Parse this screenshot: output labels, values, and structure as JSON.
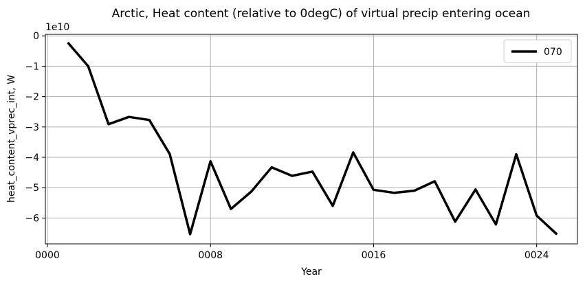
{
  "chart_data": {
    "type": "line",
    "title": "Arctic, Heat content (relative to 0degC) of virtual precip entering ocean",
    "xlabel": "Year",
    "ylabel": "heat_content_vprec_int, W",
    "offset_label": "1e10",
    "x_ticks": [
      {
        "value": 0,
        "label": "0000"
      },
      {
        "value": 8,
        "label": "0008"
      },
      {
        "value": 16,
        "label": "0016"
      },
      {
        "value": 24,
        "label": "0024"
      }
    ],
    "y_ticks": [
      {
        "value": 0,
        "label": "0"
      },
      {
        "value": -1,
        "label": "−1"
      },
      {
        "value": -2,
        "label": "−2"
      },
      {
        "value": -3,
        "label": "−3"
      },
      {
        "value": -4,
        "label": "−4"
      },
      {
        "value": -5,
        "label": "−5"
      },
      {
        "value": -6,
        "label": "−6"
      }
    ],
    "xlim": [
      -0.1,
      26
    ],
    "ylim": [
      -6.85,
      0.05
    ],
    "y_unit_scale": 10000000000.0,
    "grid": true,
    "legend_position": "top-right",
    "series": [
      {
        "name": "070",
        "color": "#000000",
        "x": [
          1,
          2,
          3,
          4,
          5,
          6,
          7,
          8,
          9,
          10,
          11,
          12,
          13,
          14,
          15,
          16,
          17,
          18,
          19,
          20,
          21,
          22,
          23,
          24,
          25
        ],
        "y": [
          -0.22,
          -1.0,
          -2.91,
          -2.67,
          -2.77,
          -3.89,
          -6.53,
          -4.13,
          -5.7,
          -5.13,
          -4.33,
          -4.61,
          -4.47,
          -5.6,
          -3.84,
          -5.07,
          -5.17,
          -5.1,
          -4.79,
          -6.12,
          -5.06,
          -6.21,
          -3.9,
          -5.92,
          -6.54
        ]
      }
    ]
  }
}
